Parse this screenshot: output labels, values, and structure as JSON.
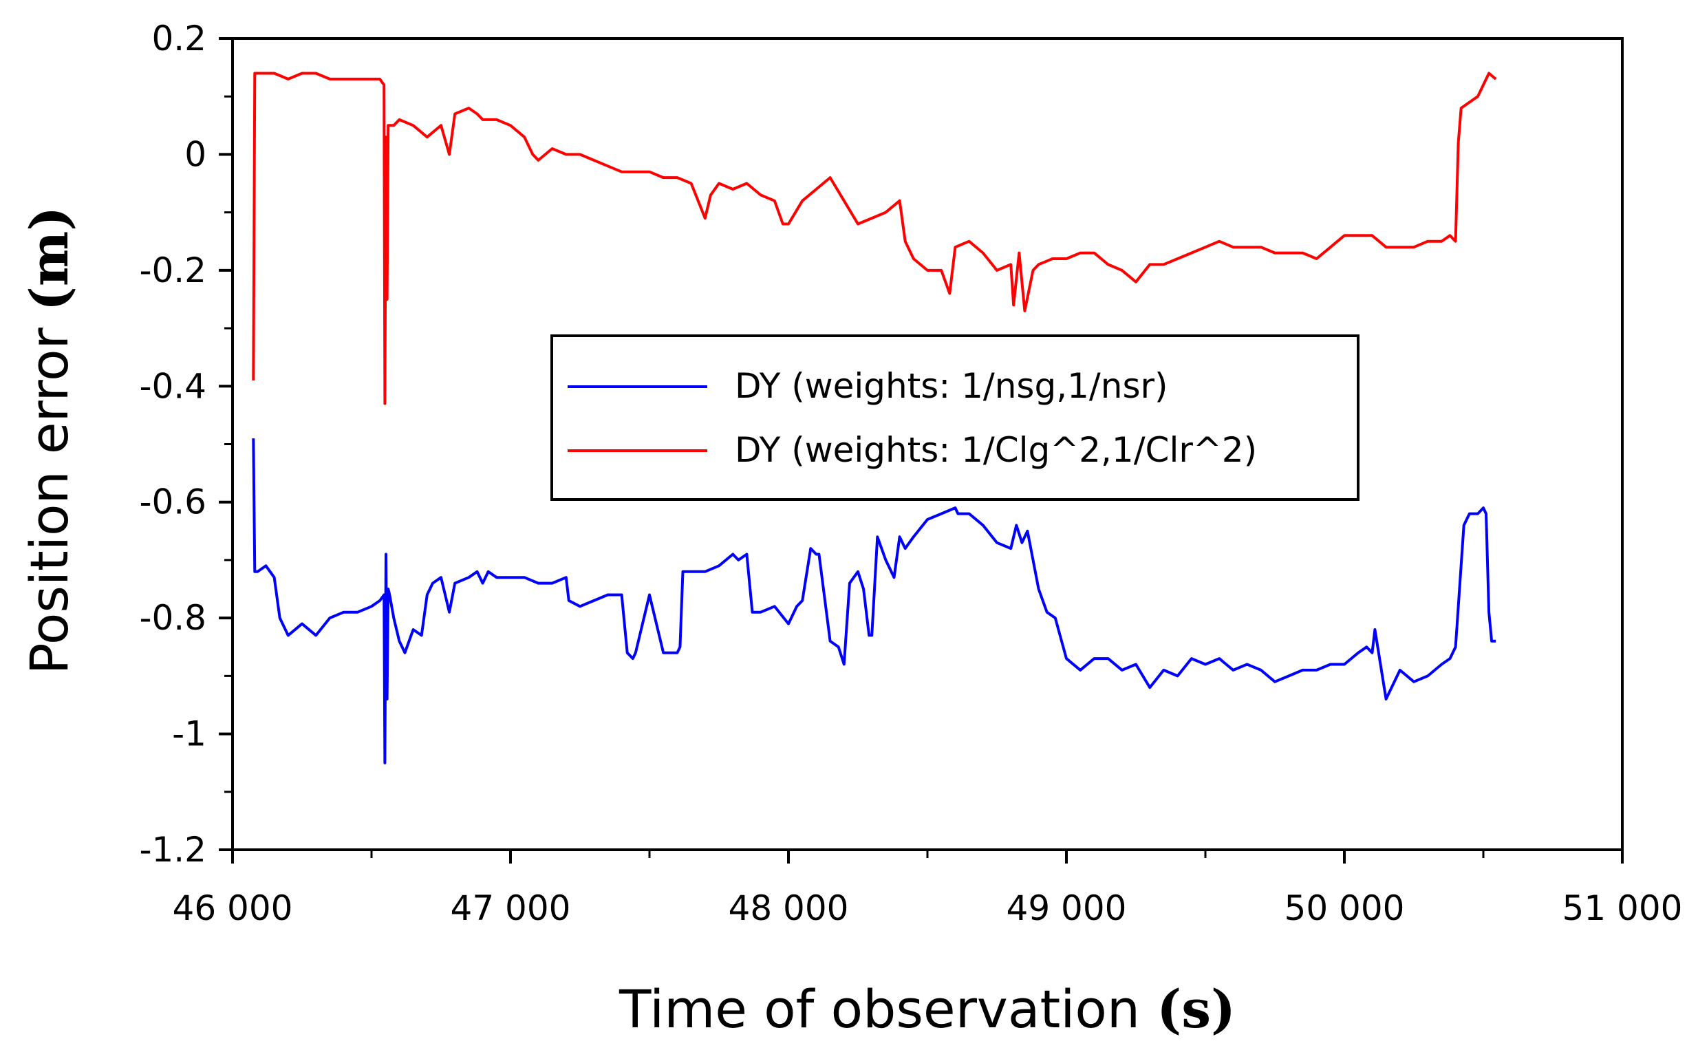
{
  "chart_data": {
    "type": "line",
    "title": "",
    "xlabel": "Time of observation",
    "xlabel_unit": "(s)",
    "ylabel": "Position error",
    "ylabel_unit": "(m)",
    "xlim": [
      46000,
      51000
    ],
    "ylim": [
      -1.2,
      0.2
    ],
    "x_ticks": [
      46000,
      47000,
      48000,
      49000,
      50000,
      51000
    ],
    "x_tick_labels": [
      "46 000",
      "47 000",
      "48 000",
      "49 000",
      "50 000",
      "51 000"
    ],
    "y_ticks": [
      0.2,
      0,
      -0.2,
      -0.4,
      -0.6,
      -0.8,
      -1,
      -1.2
    ],
    "y_tick_labels": [
      "0.2",
      "0",
      "-0.2",
      "-0.4",
      "-0.6",
      "-0.8",
      "-1",
      "-1.2"
    ],
    "grid": false,
    "legend_position": "center",
    "series": [
      {
        "name": "DY (weights: 1/nsg,1/nsr)",
        "color": "#0000ff",
        "x": [
          46075,
          46080,
          46090,
          46120,
          46150,
          46170,
          46190,
          46200,
          46250,
          46300,
          46350,
          46400,
          46450,
          46500,
          46530,
          46545,
          46548,
          46552,
          46556,
          46560,
          46565,
          46580,
          46600,
          46620,
          46650,
          46680,
          46700,
          46720,
          46750,
          46780,
          46800,
          46850,
          46880,
          46900,
          46920,
          46950,
          47000,
          47050,
          47100,
          47150,
          47200,
          47210,
          47250,
          47300,
          47350,
          47380,
          47400,
          47420,
          47440,
          47450,
          47500,
          47550,
          47600,
          47610,
          47620,
          47650,
          47700,
          47750,
          47800,
          47820,
          47850,
          47870,
          47900,
          47950,
          48000,
          48030,
          48050,
          48080,
          48100,
          48110,
          48150,
          48180,
          48200,
          48220,
          48250,
          48270,
          48290,
          48300,
          48320,
          48350,
          48380,
          48400,
          48420,
          48450,
          48500,
          48550,
          48600,
          48610,
          48650,
          48700,
          48750,
          48800,
          48820,
          48840,
          48860,
          48900,
          48930,
          48960,
          49000,
          49050,
          49100,
          49150,
          49200,
          49250,
          49300,
          49350,
          49400,
          49450,
          49500,
          49550,
          49600,
          49650,
          49700,
          49750,
          49800,
          49850,
          49900,
          49950,
          50000,
          50050,
          50080,
          50100,
          50110,
          50130,
          50150,
          50200,
          50250,
          50300,
          50350,
          50380,
          50400,
          50430,
          50450,
          50480,
          50500,
          50510,
          50520,
          50530,
          50540,
          50545
        ],
        "y": [
          -0.49,
          -0.72,
          -0.72,
          -0.71,
          -0.73,
          -0.8,
          -0.82,
          -0.83,
          -0.81,
          -0.83,
          -0.8,
          -0.79,
          -0.79,
          -0.78,
          -0.77,
          -0.76,
          -1.05,
          -0.69,
          -0.94,
          -0.75,
          -0.76,
          -0.8,
          -0.84,
          -0.86,
          -0.82,
          -0.83,
          -0.76,
          -0.74,
          -0.73,
          -0.79,
          -0.74,
          -0.73,
          -0.72,
          -0.74,
          -0.72,
          -0.73,
          -0.73,
          -0.73,
          -0.74,
          -0.74,
          -0.73,
          -0.77,
          -0.78,
          -0.77,
          -0.76,
          -0.76,
          -0.76,
          -0.86,
          -0.87,
          -0.86,
          -0.76,
          -0.86,
          -0.86,
          -0.85,
          -0.72,
          -0.72,
          -0.72,
          -0.71,
          -0.69,
          -0.7,
          -0.69,
          -0.79,
          -0.79,
          -0.78,
          -0.81,
          -0.78,
          -0.77,
          -0.68,
          -0.69,
          -0.69,
          -0.84,
          -0.85,
          -0.88,
          -0.74,
          -0.72,
          -0.75,
          -0.83,
          -0.83,
          -0.66,
          -0.7,
          -0.73,
          -0.66,
          -0.68,
          -0.66,
          -0.63,
          -0.62,
          -0.61,
          -0.62,
          -0.62,
          -0.64,
          -0.67,
          -0.68,
          -0.64,
          -0.67,
          -0.65,
          -0.75,
          -0.79,
          -0.8,
          -0.87,
          -0.89,
          -0.87,
          -0.87,
          -0.89,
          -0.88,
          -0.92,
          -0.89,
          -0.9,
          -0.87,
          -0.88,
          -0.87,
          -0.89,
          -0.88,
          -0.89,
          -0.91,
          -0.9,
          -0.89,
          -0.89,
          -0.88,
          -0.88,
          -0.86,
          -0.85,
          -0.86,
          -0.82,
          -0.88,
          -0.94,
          -0.89,
          -0.91,
          -0.9,
          -0.88,
          -0.87,
          -0.85,
          -0.64,
          -0.62,
          -0.62,
          -0.61,
          -0.62,
          -0.79,
          -0.84,
          -0.84,
          -0.84
        ]
      },
      {
        "name": "DY (weights: 1/Clg^2,1/Clr^2)",
        "color": "#ff0000",
        "x": [
          46075,
          46080,
          46085,
          46100,
          46150,
          46200,
          46250,
          46300,
          46350,
          46400,
          46450,
          46500,
          46530,
          46545,
          46548,
          46552,
          46556,
          46560,
          46565,
          46580,
          46600,
          46650,
          46700,
          46750,
          46780,
          46800,
          46850,
          46880,
          46900,
          46950,
          47000,
          47050,
          47080,
          47100,
          47150,
          47200,
          47250,
          47300,
          47350,
          47400,
          47450,
          47500,
          47550,
          47600,
          47650,
          47700,
          47720,
          47750,
          47800,
          47850,
          47900,
          47950,
          47980,
          48000,
          48050,
          48100,
          48150,
          48200,
          48250,
          48300,
          48350,
          48400,
          48420,
          48450,
          48500,
          48550,
          48580,
          48600,
          48650,
          48700,
          48750,
          48800,
          48810,
          48830,
          48850,
          48880,
          48900,
          48950,
          49000,
          49050,
          49100,
          49150,
          49200,
          49250,
          49300,
          49350,
          49400,
          49450,
          49500,
          49550,
          49600,
          49650,
          49700,
          49750,
          49800,
          49850,
          49900,
          49950,
          50000,
          50050,
          50100,
          50150,
          50200,
          50250,
          50300,
          50350,
          50380,
          50400,
          50410,
          50420,
          50450,
          50480,
          50500,
          50520,
          50545
        ],
        "y": [
          -0.39,
          0.14,
          0.14,
          0.14,
          0.14,
          0.13,
          0.14,
          0.14,
          0.13,
          0.13,
          0.13,
          0.13,
          0.13,
          0.12,
          -0.43,
          0.03,
          -0.25,
          0.05,
          0.05,
          0.05,
          0.06,
          0.05,
          0.03,
          0.05,
          0.0,
          0.07,
          0.08,
          0.07,
          0.06,
          0.06,
          0.05,
          0.03,
          0.0,
          -0.01,
          0.01,
          0.0,
          0.0,
          -0.01,
          -0.02,
          -0.03,
          -0.03,
          -0.03,
          -0.04,
          -0.04,
          -0.05,
          -0.11,
          -0.07,
          -0.05,
          -0.06,
          -0.05,
          -0.07,
          -0.08,
          -0.12,
          -0.12,
          -0.08,
          -0.06,
          -0.04,
          -0.08,
          -0.12,
          -0.11,
          -0.1,
          -0.08,
          -0.15,
          -0.18,
          -0.2,
          -0.2,
          -0.24,
          -0.16,
          -0.15,
          -0.17,
          -0.2,
          -0.19,
          -0.26,
          -0.17,
          -0.27,
          -0.2,
          -0.19,
          -0.18,
          -0.18,
          -0.17,
          -0.17,
          -0.19,
          -0.2,
          -0.22,
          -0.19,
          -0.19,
          -0.18,
          -0.17,
          -0.16,
          -0.15,
          -0.16,
          -0.16,
          -0.16,
          -0.17,
          -0.17,
          -0.17,
          -0.18,
          -0.16,
          -0.14,
          -0.14,
          -0.14,
          -0.16,
          -0.16,
          -0.16,
          -0.15,
          -0.15,
          -0.14,
          -0.15,
          0.02,
          0.08,
          0.09,
          0.1,
          0.12,
          0.14,
          0.13
        ]
      }
    ]
  }
}
